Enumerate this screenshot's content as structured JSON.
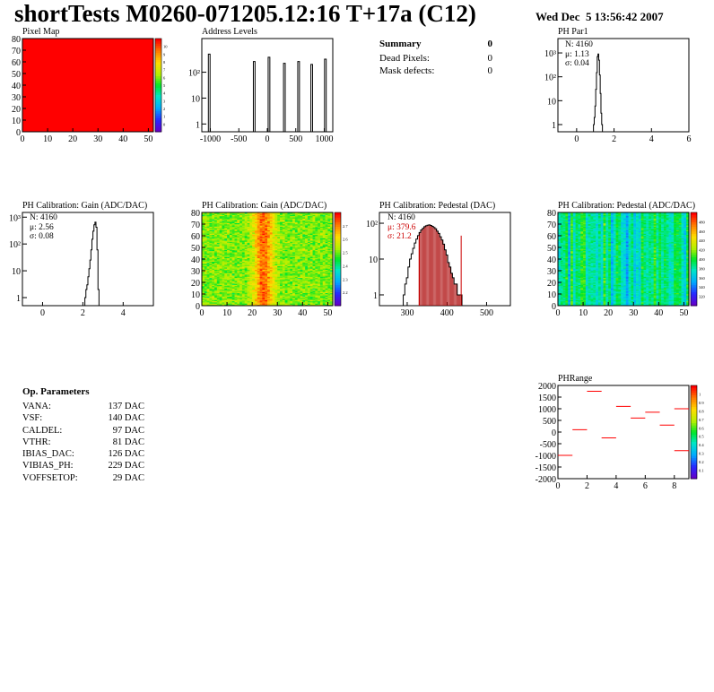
{
  "header": {
    "title": "shortTests M0260-071205.12:16 T+17a (C12)",
    "date": "Wed Dec  5 13:56:42 2007"
  },
  "summary": {
    "title": "Summary",
    "total": "0",
    "rows": [
      {
        "label": "Dead Pixels:",
        "value": "0"
      },
      {
        "label": "Mask defects:",
        "value": "0"
      }
    ]
  },
  "op_params": {
    "title": "Op. Parameters",
    "rows": [
      {
        "name": "VANA:",
        "value": "137 DAC"
      },
      {
        "name": "VSF:",
        "value": "140 DAC"
      },
      {
        "name": "CALDEL:",
        "value": "97 DAC"
      },
      {
        "name": "VTHR:",
        "value": "81 DAC"
      },
      {
        "name": "IBIAS_DAC:",
        "value": "126 DAC"
      },
      {
        "name": "VIBIAS_PH:",
        "value": "229 DAC"
      },
      {
        "name": "VOFFSETOP:",
        "value": "29 DAC"
      }
    ]
  },
  "colors": {
    "red": "#ff0000",
    "dark_red": "#aa0000",
    "axis": "#000000"
  },
  "chart_data": [
    {
      "id": "pixel-map",
      "type": "heatmap",
      "title": "Pixel Map",
      "xlim": [
        0,
        52
      ],
      "ylim": [
        0,
        80
      ],
      "xticks": [
        0,
        10,
        20,
        30,
        40,
        50
      ],
      "yticks": [
        0,
        10,
        20,
        30,
        40,
        50,
        60,
        70,
        80
      ],
      "uniform_value": 10,
      "zlim": [
        0,
        10
      ],
      "zticks": [
        "0",
        "1",
        "2",
        "3",
        "4",
        "5",
        "6",
        "7",
        "8",
        "9",
        "10"
      ]
    },
    {
      "id": "address-levels",
      "type": "line",
      "title": "Address Levels",
      "xlim": [
        -1150,
        1150
      ],
      "log_y": true,
      "ylim": [
        0.5,
        2000
      ],
      "xticks": [
        -1000,
        -500,
        0,
        500,
        1000
      ],
      "yticks": [
        {
          "v": 1,
          "label": "1"
        },
        {
          "v": 10,
          "label": "10"
        },
        {
          "v": 100,
          "label": "10²"
        }
      ],
      "peaks": [
        {
          "x": -1020,
          "width": 30,
          "height": 500
        },
        {
          "x": -230,
          "width": 30,
          "height": 260
        },
        {
          "x": 30,
          "width": 30,
          "height": 380
        },
        {
          "x": 300,
          "width": 30,
          "height": 220
        },
        {
          "x": 550,
          "width": 30,
          "height": 260
        },
        {
          "x": 780,
          "width": 30,
          "height": 200
        },
        {
          "x": 1020,
          "width": 30,
          "height": 320
        }
      ]
    },
    {
      "id": "ph-par1",
      "type": "bar",
      "title": "PH Par1",
      "xlim": [
        -1,
        6
      ],
      "log_y": true,
      "ylim": [
        0.5,
        4000
      ],
      "xticks": [
        0,
        2,
        4,
        6
      ],
      "yticks": [
        {
          "v": 1,
          "label": "1"
        },
        {
          "v": 10,
          "label": "10"
        },
        {
          "v": 100,
          "label": "10²"
        },
        {
          "v": 1000,
          "label": "10³"
        }
      ],
      "stats": {
        "entries": "N: 4160",
        "mean": "μ: 1.13",
        "sigma": "σ: 0.04"
      },
      "bins": {
        "x0": 0.9,
        "dx": 0.04,
        "values": [
          1,
          2,
          6,
          30,
          150,
          700,
          900,
          500,
          120,
          20,
          3,
          1
        ]
      }
    },
    {
      "id": "gain-1d",
      "type": "bar",
      "title": "PH Calibration: Gain (ADC/DAC)",
      "xlim": [
        -1,
        5.5
      ],
      "log_y": true,
      "ylim": [
        0.5,
        1500
      ],
      "xticks": [
        0,
        2,
        4
      ],
      "yticks": [
        {
          "v": 1,
          "label": "1"
        },
        {
          "v": 10,
          "label": "10"
        },
        {
          "v": 100,
          "label": "10²"
        },
        {
          "v": 1000,
          "label": "10³"
        }
      ],
      "stats": {
        "entries": "N: 4160",
        "mean": "μ: 2.56",
        "sigma": "σ: 0.08"
      },
      "bins": {
        "x0": 2.1,
        "dx": 0.05,
        "values": [
          1,
          2,
          3,
          6,
          12,
          25,
          60,
          150,
          300,
          520,
          650,
          420,
          60,
          2
        ]
      }
    },
    {
      "id": "gain-map",
      "type": "heatmap",
      "title": "PH Calibration: Gain (ADC/DAC)",
      "xlim": [
        0,
        52
      ],
      "ylim": [
        0,
        80
      ],
      "xticks": [
        0,
        10,
        20,
        30,
        40,
        50
      ],
      "yticks": [
        0,
        10,
        20,
        30,
        40,
        50,
        60,
        70,
        80
      ],
      "zlim": [
        2.1,
        2.75
      ],
      "zticks": [
        "2.2",
        "2.3",
        "2.4",
        "2.5",
        "2.6",
        "2.7"
      ],
      "model": {
        "base": 2.48,
        "peak_column": 24,
        "peak_amp": 0.2,
        "peak_width": 4,
        "noise": 0.08
      }
    },
    {
      "id": "pedestal-1d",
      "type": "bar",
      "title": "PH Calibration: Pedestal (DAC)",
      "xlim": [
        230,
        560
      ],
      "log_y": true,
      "ylim": [
        0.5,
        200
      ],
      "xticks": [
        300,
        400,
        500
      ],
      "yticks": [
        {
          "v": 1,
          "label": "1"
        },
        {
          "v": 10,
          "label": "10"
        },
        {
          "v": 100,
          "label": "10²"
        }
      ],
      "stats": {
        "entries": "N: 4160",
        "mean": "μ: 379.6",
        "sigma": "σ: 21.2"
      },
      "mean": 379.6,
      "sigma": 21.2,
      "cut_lines": [
        330,
        436
      ],
      "fit_range": [
        330,
        436
      ],
      "bins": {
        "x0": 290,
        "dx": 4,
        "values": [
          1,
          2,
          3,
          6,
          10,
          14,
          20,
          28,
          36,
          45,
          55,
          65,
          72,
          80,
          85,
          88,
          90,
          87,
          82,
          76,
          70,
          60,
          52,
          42,
          34,
          26,
          18,
          13,
          8,
          6,
          4,
          3,
          2,
          2,
          1,
          1,
          1
        ]
      }
    },
    {
      "id": "pedestal-map",
      "type": "heatmap",
      "title": "PH Calibration: Pedestal (ADC/DAC)",
      "xlim": [
        0,
        52
      ],
      "ylim": [
        0,
        80
      ],
      "xticks": [
        0,
        10,
        20,
        30,
        40,
        50
      ],
      "yticks": [
        0,
        10,
        20,
        30,
        40,
        50,
        60,
        70,
        80
      ],
      "zlim": [
        300,
        500
      ],
      "zticks": [
        "320",
        "340",
        "360",
        "380",
        "400",
        "420",
        "440",
        "460",
        "480"
      ],
      "model": {
        "base": 385,
        "noise": 20
      }
    },
    {
      "id": "ph-range",
      "type": "scatter",
      "title": "PHRange",
      "xlim": [
        0,
        9
      ],
      "ylim": [
        -2000,
        2000
      ],
      "xticks": [
        0,
        2,
        4,
        6,
        8
      ],
      "yticks": [
        -2000,
        -1500,
        -1000,
        -500,
        0,
        500,
        1000,
        1500,
        2000
      ],
      "zlim": [
        0,
        1
      ],
      "zticks": [
        "0.1",
        "0.2",
        "0.3",
        "0.4",
        "0.5",
        "0.6",
        "0.7",
        "0.8",
        "0.9",
        "1"
      ],
      "segments": [
        {
          "x": 0,
          "y": -1000
        },
        {
          "x": 1,
          "y": 100
        },
        {
          "x": 2,
          "y": 1750
        },
        {
          "x": 3,
          "y": -250
        },
        {
          "x": 4,
          "y": 1100
        },
        {
          "x": 5,
          "y": 600
        },
        {
          "x": 6,
          "y": 850
        },
        {
          "x": 7,
          "y": 300
        },
        {
          "x": 8,
          "y": 1000
        },
        {
          "x": 8,
          "y": -800
        }
      ]
    }
  ]
}
